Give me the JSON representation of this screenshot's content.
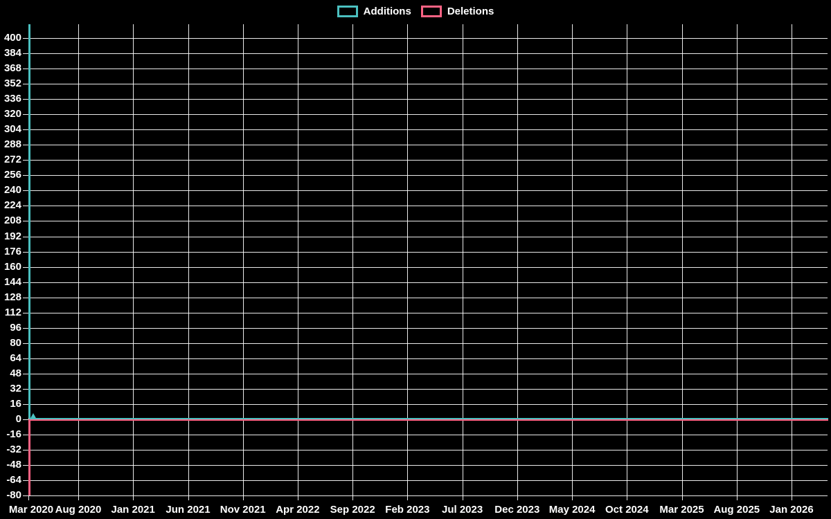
{
  "colors": {
    "background": "#000000",
    "grid": "#f5f5f5",
    "text": "#ffffff",
    "additions": "#4bc0c0",
    "deletions": "#ff6384"
  },
  "legend": {
    "items": [
      {
        "label": "Additions",
        "color": "#4bc0c0"
      },
      {
        "label": "Deletions",
        "color": "#ff6384"
      }
    ]
  },
  "chart_data": {
    "type": "line",
    "title": "",
    "xlabel": "",
    "ylabel": "",
    "legend_position": "top-center",
    "grid": true,
    "x_ticks": [
      "Mar 2020",
      "Aug 2020",
      "Jan 2021",
      "Jun 2021",
      "Nov 2021",
      "Apr 2022",
      "Sep 2022",
      "Feb 2023",
      "Jul 2023",
      "Dec 2023",
      "May 2024",
      "Oct 2024",
      "Mar 2025",
      "Aug 2025",
      "Jan 2026"
    ],
    "y_ticks": [
      400,
      384,
      368,
      352,
      336,
      320,
      304,
      288,
      272,
      256,
      240,
      224,
      208,
      192,
      176,
      160,
      144,
      128,
      112,
      96,
      80,
      64,
      48,
      32,
      16,
      0,
      -16,
      -32,
      -48,
      -64,
      -80
    ],
    "y_tick_step": 16,
    "y_axis_range": [
      -85,
      414.5
    ],
    "series": [
      {
        "name": "Additions",
        "color": "#4bc0c0",
        "points": [
          {
            "x": "Mar 2020 (start)",
            "y": 0
          },
          {
            "x": "Mar 2020 (week 1)",
            "y": 415,
            "note": "spike clipped at top of axis, exceeds 400"
          },
          {
            "x": "Mar 2020 (week 2)",
            "y": 0
          },
          {
            "x": "Jan 2026",
            "y": 0,
            "note": "flat at zero through end of axis"
          }
        ],
        "marker": {
          "shape": "triangle-up",
          "x": "Mar 2020 (week 2)",
          "y": 0
        }
      },
      {
        "name": "Deletions",
        "color": "#ff6384",
        "points": [
          {
            "x": "Mar 2020 (start)",
            "y": 0
          },
          {
            "x": "Mar 2020 (week 1)",
            "y": -80
          },
          {
            "x": "Mar 2020 (week 2)",
            "y": 0
          },
          {
            "x": "Jan 2026",
            "y": 0,
            "note": "flat at zero through end of axis, hidden under Additions line"
          }
        ]
      }
    ]
  }
}
